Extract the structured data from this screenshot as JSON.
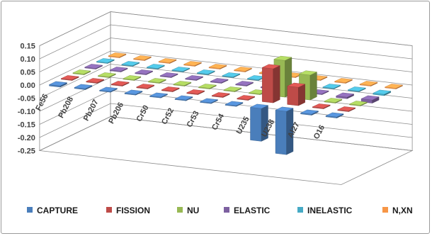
{
  "chart_data": {
    "type": "bar",
    "subtype": "3d-column",
    "categories": [
      "Fe56",
      "Pb208",
      "Pb207",
      "Pb206",
      "Cr50",
      "Cr52",
      "Cr53",
      "Cr54",
      "U235",
      "U238",
      "Al27",
      "O16"
    ],
    "ylim": [
      -0.25,
      0.15
    ],
    "y_ticks": [
      "0.15",
      "0.10",
      "0.05",
      "0.00",
      "-0.05",
      "-0.10",
      "-0.15",
      "-0.20",
      "-0.25"
    ],
    "grid": true,
    "legend_position": "bottom",
    "series": [
      {
        "name": "CAPTURE",
        "color": "#4a7ebb",
        "values": [
          -0.005,
          -0.004,
          -0.003,
          -0.003,
          -0.003,
          -0.003,
          -0.003,
          -0.003,
          -0.125,
          -0.165,
          -0.004,
          -0.004
        ]
      },
      {
        "name": "FISSION",
        "color": "#be4b48",
        "values": [
          0.0,
          0.0,
          0.0,
          0.0,
          0.0,
          0.0,
          0.0,
          0.0,
          0.13,
          0.07,
          0.0,
          0.0
        ]
      },
      {
        "name": "NU",
        "color": "#98b954",
        "values": [
          0.0,
          0.0,
          0.0,
          0.0,
          0.0,
          0.0,
          0.0,
          0.0,
          0.14,
          0.095,
          0.0,
          0.0
        ]
      },
      {
        "name": "ELASTIC",
        "color": "#7d60a0",
        "values": [
          0.0,
          0.0,
          0.0,
          0.0,
          0.0,
          0.0,
          0.0,
          0.0,
          0.0,
          0.0,
          -0.006,
          -0.012
        ]
      },
      {
        "name": "INELASTIC",
        "color": "#46aac5",
        "values": [
          0.0,
          0.0,
          0.0,
          0.0,
          0.0,
          0.0,
          0.0,
          0.0,
          0.0,
          0.0,
          0.0,
          -0.005
        ]
      },
      {
        "name": "N,XN",
        "color": "#f79646",
        "values": [
          0.0,
          0.0,
          0.0,
          0.0,
          0.0,
          0.0,
          0.0,
          0.0,
          0.0,
          0.0,
          0.0,
          0.0
        ]
      }
    ]
  }
}
